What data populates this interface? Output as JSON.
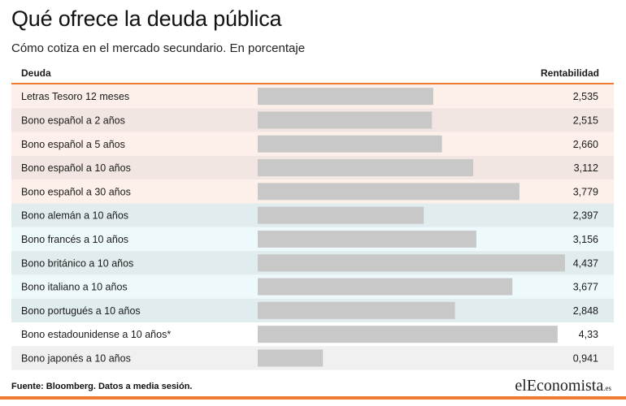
{
  "header": {
    "title": "Qué ofrece la deuda pública",
    "subtitle": "Cómo cotiza en el mercado secundario. En porcentaje"
  },
  "table": {
    "col_left": "Deuda",
    "col_right": "Rentabilidad"
  },
  "chart_data": {
    "type": "bar",
    "orientation": "horizontal",
    "categories": [
      "Letras Tesoro 12 meses",
      "Bono español a 2 años",
      "Bono español a 5 años",
      "Bono español a 10 años",
      "Bono español a 30 años",
      "Bono alemán a 10 años",
      "Bono francés a 10 años",
      "Bono británico a 10 años",
      "Bono italiano a 10 años",
      "Bono portugués a 10 años",
      "Bono estadounidense a 10 años*",
      "Bono japonés a 10 años"
    ],
    "values": [
      2.535,
      2.515,
      2.66,
      3.112,
      3.779,
      2.397,
      3.156,
      4.437,
      3.677,
      2.848,
      4.33,
      0.941
    ],
    "value_labels": [
      "2,535",
      "2,515",
      "2,660",
      "3,112",
      "3,779",
      "2,397",
      "3,156",
      "4,437",
      "3,677",
      "2,848",
      "4,33",
      "0,941"
    ],
    "bar_color": "#c8c8c8",
    "row_colors": [
      "#fdf0ea",
      "#f2e6e2",
      "#fdf0ea",
      "#f2e6e2",
      "#fdf0ea",
      "#e0ecee",
      "#eef9fc",
      "#e0ecee",
      "#eef9fc",
      "#e0ecee",
      "#ffffff",
      "#f0f0f0"
    ]
  },
  "footer": {
    "source": "Fuente: Bloomberg. Datos a media sesión.",
    "logo_small": "el",
    "logo_big": "Economista",
    "logo_tld": ".es"
  },
  "accent_color": "#ee7d33"
}
